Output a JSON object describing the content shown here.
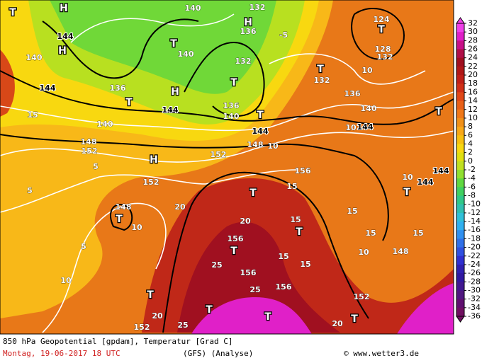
{
  "map": {
    "labels": [
      "T",
      "H",
      "144",
      "H",
      "140",
      "140",
      "132",
      "H",
      "136",
      "-5",
      "124",
      "T",
      "128",
      "132",
      "T",
      "140",
      "132",
      "T",
      "T",
      "132",
      "10",
      "144",
      "136",
      "T",
      "H",
      "144",
      "136",
      "136",
      "140",
      "T",
      "144",
      "140",
      "10",
      "144",
      "T",
      "15",
      "140",
      "148",
      "152",
      "148",
      "10",
      "152",
      "H",
      "5",
      "156",
      "152",
      "144",
      "144",
      "10",
      "T",
      "T",
      "15",
      "5",
      "148",
      "T",
      "10",
      "20",
      "15",
      "20",
      "15",
      "T",
      "156",
      "15",
      "15",
      "5",
      "T",
      "10",
      "148",
      "15",
      "25",
      "15",
      "156",
      "10",
      "156",
      "25",
      "T",
      "152",
      "T",
      "T",
      "T",
      "20",
      "20",
      "152",
      "25"
    ]
  },
  "colorbar": {
    "ticks": [
      32,
      30,
      28,
      26,
      24,
      22,
      20,
      18,
      16,
      14,
      12,
      10,
      8,
      6,
      4,
      2,
      0,
      -2,
      -4,
      -6,
      -8,
      -10,
      -12,
      -14,
      -16,
      -18,
      -20,
      -22,
      -24,
      -26,
      -28,
      -30,
      -32,
      -34,
      -36
    ],
    "colors": [
      "#f040e8",
      "#e020c8",
      "#c81088",
      "#b01048",
      "#a01020",
      "#b01818",
      "#c02018",
      "#d03018",
      "#e04818",
      "#e86018",
      "#f07818",
      "#f09018",
      "#f8a818",
      "#f8c010",
      "#f8d810",
      "#e0e010",
      "#c0e020",
      "#90e030",
      "#60d840",
      "#40d060",
      "#30c888",
      "#30c0b0",
      "#30c0d8",
      "#30b0f0",
      "#3090f0",
      "#3070e8",
      "#3050e0",
      "#3030d0",
      "#3020b0",
      "#3018a0",
      "#401890",
      "#501880",
      "#601070",
      "#701060",
      "#701060"
    ]
  },
  "footer": {
    "caption": "850 hPa Geopotential [gpdam], Temperatur [Grad C]",
    "date": "Montag, 19-06-2017  18 UTC",
    "model": "(GFS)   (Analyse)",
    "credit": "© www.wetter3.de"
  }
}
